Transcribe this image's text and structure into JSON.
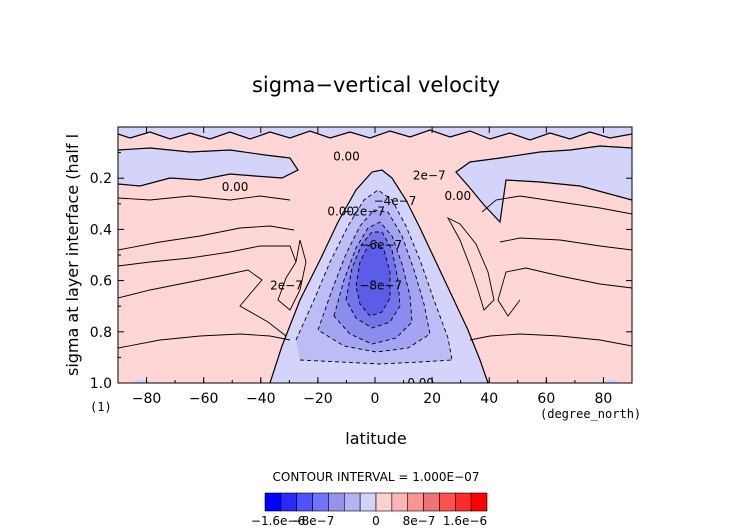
{
  "chart_data": {
    "type": "heatmap",
    "title": "sigma−vertical velocity",
    "xlabel": "latitude",
    "ylabel": "sigma at layer interface (half l",
    "x_units": "(degree_north)",
    "y_units": "(1)",
    "xlim": [
      -90,
      90
    ],
    "ylim": [
      0.0,
      1.0
    ],
    "y_inverted": true,
    "x_ticks": [
      -80,
      -60,
      -40,
      -20,
      0,
      20,
      40,
      60,
      80
    ],
    "x_tick_labels": [
      "−80",
      "−60",
      "−40",
      "−20",
      "0",
      "20",
      "40",
      "60",
      "80"
    ],
    "y_ticks": [
      0.2,
      0.4,
      0.6,
      0.8,
      1.0
    ],
    "y_tick_labels": [
      "0.2",
      "0.4",
      "0.6",
      "0.8",
      "1.0"
    ],
    "contour_interval_text": "CONTOUR INTERVAL = 1.000E−07",
    "colorbar": {
      "colors": [
        "#0000ff",
        "#2a2aff",
        "#5050ff",
        "#7272ff",
        "#9494ee",
        "#b4b4f4",
        "#d2d2fa",
        "#ffd2d2",
        "#fcb4b4",
        "#f89494",
        "#f07272",
        "#ff5050",
        "#ff2a2a",
        "#ff0000"
      ],
      "labels": [
        "−1.6e−6",
        "−8e−7",
        "0",
        "8e−7",
        "1.6e−6"
      ]
    },
    "contour_labels": [
      {
        "text": "0.00",
        "lat": -10,
        "sigma": 0.115
      },
      {
        "text": "0.00",
        "lat": -49,
        "sigma": 0.235
      },
      {
        "text": "0.00",
        "lat": -12,
        "sigma": 0.33
      },
      {
        "text": "−2e−7",
        "lat": -4,
        "sigma": 0.33
      },
      {
        "text": "−4e−7",
        "lat": 7,
        "sigma": 0.29
      },
      {
        "text": "−6e−7",
        "lat": 2,
        "sigma": 0.46
      },
      {
        "text": "−8e−7",
        "lat": 2,
        "sigma": 0.62
      },
      {
        "text": "2e−7",
        "lat": -31,
        "sigma": 0.62
      },
      {
        "text": "2e−7",
        "lat": 19,
        "sigma": 0.19
      },
      {
        "text": "0.00",
        "lat": 29,
        "sigma": 0.27
      },
      {
        "text": "0.00",
        "lat": 16,
        "sigma": 1.0
      }
    ]
  }
}
